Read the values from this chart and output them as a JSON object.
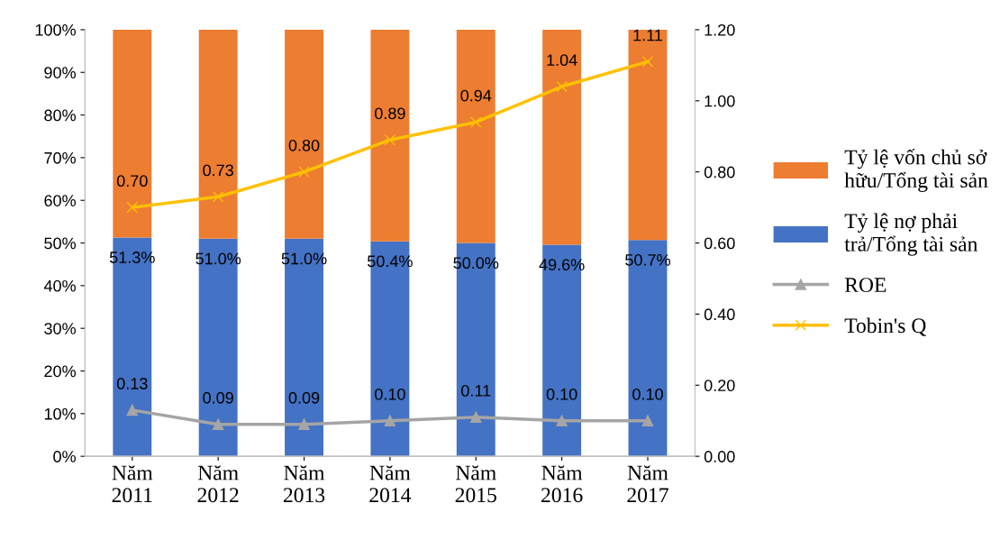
{
  "chart_data": {
    "type": "bar",
    "stacked": true,
    "categories": [
      "Năm 2011",
      "Năm 2012",
      "Năm 2013",
      "Năm 2014",
      "Năm 2015",
      "Năm 2016",
      "Năm 2017"
    ],
    "series": [
      {
        "name": "Tỷ lệ nợ phải trả/Tổng tài sản",
        "color": "#4472c4",
        "values": [
          51.3,
          51.0,
          51.0,
          50.4,
          50.0,
          49.6,
          50.7
        ],
        "value_labels": [
          "51.3%",
          "51.0%",
          "51.0%",
          "50.4%",
          "50.0%",
          "49.6%",
          "50.7%"
        ]
      },
      {
        "name": "Tỷ lệ vốn chủ sở hữu/Tổng tài sản",
        "color": "#ed7d31",
        "values": [
          48.7,
          49.0,
          49.0,
          49.6,
          50.0,
          50.4,
          49.3
        ]
      },
      {
        "name": "ROE",
        "type": "line",
        "axis": "y2",
        "color": "#a5a5a5",
        "marker": "triangle",
        "values": [
          0.13,
          0.09,
          0.09,
          0.1,
          0.11,
          0.1,
          0.1
        ],
        "value_labels": [
          "0.13",
          "0.09",
          "0.09",
          "0.10",
          "0.11",
          "0.10",
          "0.10"
        ]
      },
      {
        "name": "Tobin's Q",
        "type": "line",
        "axis": "y2",
        "color": "#ffc000",
        "marker": "cross",
        "values": [
          0.7,
          0.73,
          0.8,
          0.89,
          0.94,
          1.04,
          1.11
        ],
        "value_labels": [
          "0.70",
          "0.73",
          "0.80",
          "0.89",
          "0.94",
          "1.04",
          "1.11"
        ]
      }
    ],
    "ylim": [
      0,
      100
    ],
    "yticks": [
      {
        "value": 0,
        "label": "0%"
      },
      {
        "value": 10,
        "label": "10%"
      },
      {
        "value": 20,
        "label": "20%"
      },
      {
        "value": 30,
        "label": "30%"
      },
      {
        "value": 40,
        "label": "40%"
      },
      {
        "value": 50,
        "label": "50%"
      },
      {
        "value": 60,
        "label": "60%"
      },
      {
        "value": 70,
        "label": "70%"
      },
      {
        "value": 80,
        "label": "80%"
      },
      {
        "value": 90,
        "label": "90%"
      },
      {
        "value": 100,
        "label": "100%"
      }
    ],
    "y2lim": [
      0,
      1.2
    ],
    "y2ticks": [
      {
        "value": 0,
        "label": "0.00"
      },
      {
        "value": 0.2,
        "label": "0.20"
      },
      {
        "value": 0.4,
        "label": "0.40"
      },
      {
        "value": 0.6,
        "label": "0.60"
      },
      {
        "value": 0.8,
        "label": "0.80"
      },
      {
        "value": 1.0,
        "label": "1.00"
      },
      {
        "value": 1.2,
        "label": "1.20"
      }
    ],
    "grid": false,
    "legend": "right"
  }
}
